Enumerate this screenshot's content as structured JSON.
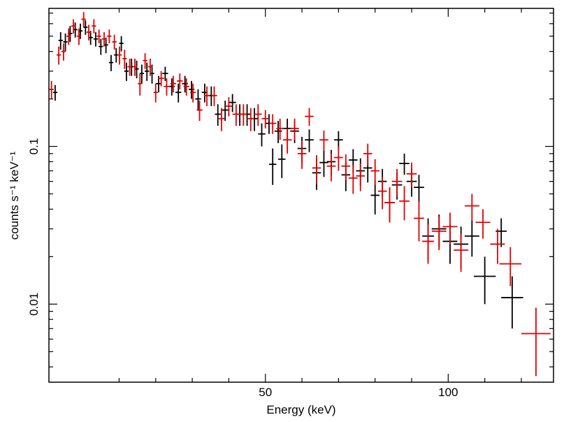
{
  "chart_data": {
    "type": "scatter",
    "title": "",
    "xlabel": "Energy (keV)",
    "ylabel": "counts s⁻¹ keV⁻¹",
    "x_scale": "linear",
    "y_scale": "log",
    "xlim": [
      -9.2,
      128.8
    ],
    "ylim": [
      0.0032,
      0.75
    ],
    "x_ticks": [
      {
        "value": 50,
        "label": "50"
      },
      {
        "value": 100,
        "label": "100"
      }
    ],
    "y_ticks": [
      {
        "value": 0.1,
        "label": "0.1"
      },
      {
        "value": 0.01,
        "label": "0.01"
      }
    ],
    "colors": {
      "series_black": "#000000",
      "series_red": "#e00000"
    },
    "series": [
      {
        "name": "black",
        "color": "#000000",
        "points": [
          [
            -7.5,
            0.22,
            0.6,
            0.025
          ],
          [
            -6.0,
            0.47,
            0.6,
            0.06
          ],
          [
            -4.7,
            0.46,
            0.6,
            0.06
          ],
          [
            -3.4,
            0.52,
            0.6,
            0.06
          ],
          [
            -2.0,
            0.55,
            0.6,
            0.06
          ],
          [
            -0.6,
            0.54,
            0.6,
            0.06
          ],
          [
            0.8,
            0.57,
            0.6,
            0.06
          ],
          [
            2.2,
            0.49,
            0.6,
            0.05
          ],
          [
            3.6,
            0.48,
            0.6,
            0.05
          ],
          [
            5.0,
            0.43,
            0.6,
            0.05
          ],
          [
            6.4,
            0.44,
            0.6,
            0.05
          ],
          [
            7.8,
            0.34,
            0.6,
            0.04
          ],
          [
            9.2,
            0.38,
            0.6,
            0.04
          ],
          [
            10.6,
            0.45,
            0.6,
            0.05
          ],
          [
            12.0,
            0.3,
            0.6,
            0.04
          ],
          [
            13.4,
            0.32,
            0.6,
            0.04
          ],
          [
            14.8,
            0.31,
            0.6,
            0.04
          ],
          [
            16.2,
            0.29,
            0.6,
            0.04
          ],
          [
            17.6,
            0.3,
            0.6,
            0.04
          ],
          [
            19.0,
            0.29,
            0.6,
            0.04
          ],
          [
            20.8,
            0.25,
            0.8,
            0.03
          ],
          [
            22.6,
            0.29,
            0.8,
            0.03
          ],
          [
            24.4,
            0.24,
            0.8,
            0.03
          ],
          [
            26.2,
            0.22,
            0.8,
            0.03
          ],
          [
            28.0,
            0.25,
            0.8,
            0.03
          ],
          [
            29.8,
            0.23,
            0.8,
            0.03
          ],
          [
            31.6,
            0.2,
            0.8,
            0.03
          ],
          [
            33.4,
            0.22,
            0.8,
            0.03
          ],
          [
            35.2,
            0.21,
            0.8,
            0.03
          ],
          [
            37.0,
            0.16,
            0.8,
            0.025
          ],
          [
            39.0,
            0.17,
            1.0,
            0.025
          ],
          [
            41.0,
            0.19,
            1.0,
            0.025
          ],
          [
            43.0,
            0.16,
            1.0,
            0.025
          ],
          [
            45.0,
            0.16,
            1.0,
            0.025
          ],
          [
            47.0,
            0.15,
            1.0,
            0.025
          ],
          [
            49.0,
            0.12,
            1.0,
            0.02
          ],
          [
            51.0,
            0.14,
            1.0,
            0.02
          ],
          [
            52.0,
            0.077,
            1.0,
            0.02
          ],
          [
            53.5,
            0.125,
            1.0,
            0.02
          ],
          [
            54.5,
            0.083,
            1.0,
            0.02
          ],
          [
            56.0,
            0.13,
            1.2,
            0.02
          ],
          [
            58.0,
            0.125,
            1.2,
            0.02
          ],
          [
            60.0,
            0.097,
            1.2,
            0.018
          ],
          [
            62.0,
            0.11,
            1.2,
            0.018
          ],
          [
            64.0,
            0.068,
            1.2,
            0.015
          ],
          [
            66.0,
            0.079,
            1.2,
            0.015
          ],
          [
            68.0,
            0.08,
            1.2,
            0.015
          ],
          [
            70.0,
            0.11,
            1.2,
            0.015
          ],
          [
            72.0,
            0.066,
            1.2,
            0.014
          ],
          [
            74.0,
            0.082,
            1.2,
            0.014
          ],
          [
            76.0,
            0.07,
            1.2,
            0.014
          ],
          [
            78.0,
            0.073,
            1.2,
            0.014
          ],
          [
            80.0,
            0.049,
            1.2,
            0.012
          ],
          [
            82.0,
            0.06,
            1.2,
            0.012
          ],
          [
            84.0,
            0.044,
            1.4,
            0.011
          ],
          [
            86.0,
            0.057,
            1.4,
            0.011
          ],
          [
            88.0,
            0.078,
            1.4,
            0.012
          ],
          [
            90.0,
            0.06,
            1.4,
            0.012
          ],
          [
            92.0,
            0.055,
            1.4,
            0.011
          ],
          [
            94.5,
            0.027,
            1.6,
            0.008
          ],
          [
            97.5,
            0.03,
            2.0,
            0.007
          ],
          [
            100.5,
            0.025,
            2.0,
            0.007
          ],
          [
            103.5,
            0.024,
            2.0,
            0.007
          ],
          [
            106.5,
            0.027,
            2.0,
            0.007
          ],
          [
            110.0,
            0.015,
            3.0,
            0.005
          ],
          [
            114.5,
            0.029,
            1.5,
            0.006
          ],
          [
            117.5,
            0.011,
            3.0,
            0.004
          ]
        ]
      },
      {
        "name": "red",
        "color": "#e00000",
        "points": [
          [
            -8.5,
            0.23,
            0.6,
            0.03
          ],
          [
            -6.5,
            0.38,
            0.6,
            0.05
          ],
          [
            -5.2,
            0.4,
            0.6,
            0.05
          ],
          [
            -3.8,
            0.5,
            0.6,
            0.06
          ],
          [
            -2.5,
            0.58,
            0.6,
            0.06
          ],
          [
            -1.0,
            0.5,
            0.6,
            0.06
          ],
          [
            0.3,
            0.64,
            0.6,
            0.07
          ],
          [
            1.7,
            0.53,
            0.6,
            0.06
          ],
          [
            3.1,
            0.58,
            0.6,
            0.06
          ],
          [
            4.5,
            0.5,
            0.6,
            0.05
          ],
          [
            5.9,
            0.48,
            0.6,
            0.05
          ],
          [
            7.3,
            0.5,
            0.6,
            0.05
          ],
          [
            8.7,
            0.46,
            0.6,
            0.05
          ],
          [
            10.1,
            0.38,
            0.6,
            0.05
          ],
          [
            11.5,
            0.36,
            0.6,
            0.05
          ],
          [
            12.9,
            0.32,
            0.6,
            0.04
          ],
          [
            14.3,
            0.32,
            0.6,
            0.04
          ],
          [
            15.7,
            0.25,
            0.6,
            0.04
          ],
          [
            17.1,
            0.35,
            0.6,
            0.04
          ],
          [
            18.5,
            0.32,
            0.6,
            0.04
          ],
          [
            20.0,
            0.22,
            0.6,
            0.03
          ],
          [
            21.5,
            0.27,
            0.8,
            0.03
          ],
          [
            23.0,
            0.24,
            0.8,
            0.03
          ],
          [
            24.8,
            0.25,
            0.8,
            0.03
          ],
          [
            26.6,
            0.26,
            0.8,
            0.03
          ],
          [
            28.4,
            0.24,
            0.8,
            0.03
          ],
          [
            30.2,
            0.22,
            0.8,
            0.03
          ],
          [
            32.0,
            0.17,
            0.8,
            0.025
          ],
          [
            34.0,
            0.21,
            0.8,
            0.03
          ],
          [
            36.0,
            0.21,
            0.8,
            0.03
          ],
          [
            38.0,
            0.15,
            0.8,
            0.025
          ],
          [
            40.0,
            0.18,
            1.0,
            0.025
          ],
          [
            42.0,
            0.16,
            1.0,
            0.025
          ],
          [
            44.0,
            0.16,
            1.0,
            0.025
          ],
          [
            46.0,
            0.15,
            1.0,
            0.025
          ],
          [
            48.0,
            0.16,
            1.0,
            0.025
          ],
          [
            50.0,
            0.15,
            1.0,
            0.02
          ],
          [
            52.0,
            0.14,
            1.0,
            0.02
          ],
          [
            54.0,
            0.13,
            1.0,
            0.02
          ],
          [
            56.0,
            0.11,
            1.2,
            0.02
          ],
          [
            58.0,
            0.13,
            1.2,
            0.02
          ],
          [
            60.0,
            0.09,
            1.2,
            0.018
          ],
          [
            62.0,
            0.155,
            1.2,
            0.02
          ],
          [
            64.0,
            0.073,
            1.2,
            0.015
          ],
          [
            66.0,
            0.11,
            1.2,
            0.016
          ],
          [
            68.0,
            0.075,
            1.2,
            0.015
          ],
          [
            70.0,
            0.085,
            1.2,
            0.015
          ],
          [
            72.0,
            0.075,
            1.2,
            0.014
          ],
          [
            74.0,
            0.063,
            1.2,
            0.013
          ],
          [
            76.0,
            0.065,
            1.2,
            0.013
          ],
          [
            78.0,
            0.09,
            1.2,
            0.014
          ],
          [
            80.0,
            0.07,
            1.2,
            0.013
          ],
          [
            82.0,
            0.052,
            1.2,
            0.012
          ],
          [
            84.0,
            0.044,
            1.4,
            0.011
          ],
          [
            86.0,
            0.06,
            1.4,
            0.012
          ],
          [
            88.0,
            0.045,
            1.4,
            0.011
          ],
          [
            90.0,
            0.067,
            1.4,
            0.012
          ],
          [
            92.0,
            0.035,
            1.4,
            0.01
          ],
          [
            94.5,
            0.025,
            1.6,
            0.007
          ],
          [
            97.5,
            0.029,
            2.0,
            0.007
          ],
          [
            100.5,
            0.031,
            2.0,
            0.007
          ],
          [
            103.5,
            0.022,
            2.0,
            0.006
          ],
          [
            106.5,
            0.042,
            2.0,
            0.008
          ],
          [
            109.5,
            0.033,
            2.0,
            0.007
          ],
          [
            113.5,
            0.024,
            2.0,
            0.006
          ],
          [
            117.0,
            0.018,
            3.0,
            0.005
          ],
          [
            124.0,
            0.0065,
            4.0,
            0.003
          ]
        ]
      }
    ]
  }
}
